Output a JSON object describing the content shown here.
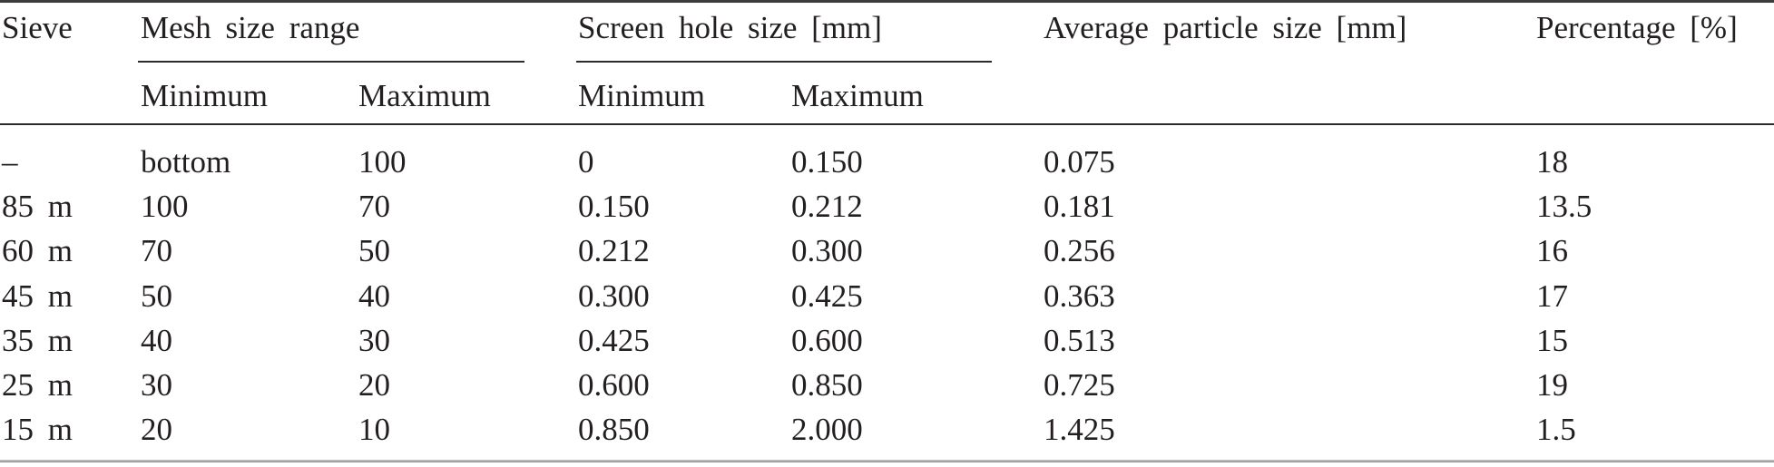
{
  "table": {
    "header": {
      "sieve": "Sieve",
      "mesh_group": "Mesh size range",
      "screen_group": "Screen hole size [mm]",
      "average": "Average particle size [mm]",
      "percentage": "Percentage [%]",
      "sub": {
        "mesh_min": "Minimum",
        "mesh_max": "Maximum",
        "screen_min": "Minimum",
        "screen_max": "Maximum"
      }
    },
    "rows": [
      {
        "sieve": "–",
        "mesh_min": "bottom",
        "mesh_max": "100",
        "screen_min": "0",
        "screen_max": "0.150",
        "avg": "0.075",
        "pct": "18"
      },
      {
        "sieve": "85 m",
        "mesh_min": "100",
        "mesh_max": "70",
        "screen_min": "0.150",
        "screen_max": "0.212",
        "avg": "0.181",
        "pct": "13.5"
      },
      {
        "sieve": "60 m",
        "mesh_min": "70",
        "mesh_max": "50",
        "screen_min": "0.212",
        "screen_max": "0.300",
        "avg": "0.256",
        "pct": "16"
      },
      {
        "sieve": "45 m",
        "mesh_min": "50",
        "mesh_max": "40",
        "screen_min": "0.300",
        "screen_max": "0.425",
        "avg": "0.363",
        "pct": "17"
      },
      {
        "sieve": "35 m",
        "mesh_min": "40",
        "mesh_max": "30",
        "screen_min": "0.425",
        "screen_max": "0.600",
        "avg": "0.513",
        "pct": "15"
      },
      {
        "sieve": "25 m",
        "mesh_min": "30",
        "mesh_max": "20",
        "screen_min": "0.600",
        "screen_max": "0.850",
        "avg": "0.725",
        "pct": "19"
      },
      {
        "sieve": "15 m",
        "mesh_min": "20",
        "mesh_max": "10",
        "screen_min": "0.850",
        "screen_max": "2.000",
        "avg": "1.425",
        "pct": "1.5"
      }
    ],
    "colors": {
      "text": "#231f20",
      "rule_dark": "#3c3c3c",
      "rule_mid": "#2b2b2b",
      "rule_light": "#8e8e8e"
    }
  }
}
